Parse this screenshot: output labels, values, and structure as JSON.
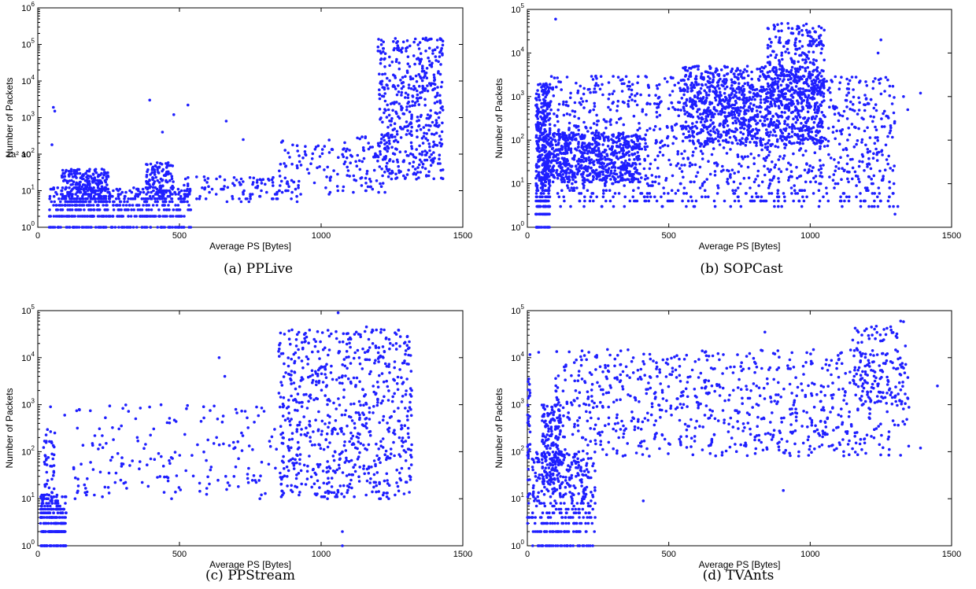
{
  "colors": {
    "marker": "#1f1fff",
    "axis": "#000000",
    "background": "#ffffff"
  },
  "chart_data": [
    {
      "type": "scatter",
      "caption": "(a) PPLive",
      "xlabel": "Average PS [Bytes]",
      "ylabel": "Number of Packets",
      "xlim": [
        0,
        1500
      ],
      "ylim": [
        1,
        1000000
      ],
      "yscale": "log",
      "x_ticks": [
        "0",
        "500",
        "1000",
        "1500"
      ],
      "y_exponents": [
        0,
        1,
        2,
        3,
        4,
        5,
        6
      ],
      "grid": false,
      "annotation": "1a² a0",
      "clusters": [
        {
          "x": [
            40,
            540
          ],
          "y": [
            1,
            12
          ],
          "n": 520
        },
        {
          "x": [
            80,
            250
          ],
          "y": [
            4,
            40
          ],
          "n": 260
        },
        {
          "x": [
            380,
            480
          ],
          "y": [
            5,
            60
          ],
          "n": 130
        },
        {
          "x": [
            500,
            950
          ],
          "y": [
            5,
            25
          ],
          "n": 110
        },
        {
          "x": [
            850,
            1250
          ],
          "y": [
            8,
            300
          ],
          "n": 160
        },
        {
          "x": [
            1200,
            1430
          ],
          "y": [
            20,
            150000
          ],
          "n": 480
        }
      ],
      "points": [
        {
          "x": 55,
          "y": 1900
        },
        {
          "x": 60,
          "y": 1500
        },
        {
          "x": 50,
          "y": 180
        },
        {
          "x": 395,
          "y": 3000
        },
        {
          "x": 440,
          "y": 400
        },
        {
          "x": 480,
          "y": 1200
        },
        {
          "x": 530,
          "y": 2200
        },
        {
          "x": 665,
          "y": 800
        },
        {
          "x": 725,
          "y": 250
        },
        {
          "x": 1255,
          "y": 120000
        },
        {
          "x": 1270,
          "y": 120000
        },
        {
          "x": 1370,
          "y": 150000
        },
        {
          "x": 1385,
          "y": 140000
        }
      ]
    },
    {
      "type": "scatter",
      "caption": "(b) SOPCast",
      "xlabel": "Average PS [Bytes]",
      "ylabel": "Number of Packets",
      "xlim": [
        0,
        1500
      ],
      "ylim": [
        1,
        100000
      ],
      "yscale": "log",
      "x_ticks": [
        "0",
        "500",
        "1000",
        "1500"
      ],
      "y_exponents": [
        0,
        1,
        2,
        3,
        4,
        5
      ],
      "grid": false,
      "clusters": [
        {
          "x": [
            30,
            80
          ],
          "y": [
            1,
            2000
          ],
          "n": 380
        },
        {
          "x": [
            60,
            400
          ],
          "y": [
            10,
            150
          ],
          "n": 600
        },
        {
          "x": [
            80,
            1300
          ],
          "y": [
            3,
            3000
          ],
          "n": 1300
        },
        {
          "x": [
            550,
            1050
          ],
          "y": [
            80,
            5000
          ],
          "n": 900
        },
        {
          "x": [
            850,
            1050
          ],
          "y": [
            1000,
            50000
          ],
          "n": 260
        }
      ],
      "points": [
        {
          "x": 100,
          "y": 60000
        },
        {
          "x": 1300,
          "y": 2
        },
        {
          "x": 1310,
          "y": 3
        },
        {
          "x": 1330,
          "y": 1000
        },
        {
          "x": 1345,
          "y": 500
        },
        {
          "x": 1390,
          "y": 1200
        },
        {
          "x": 1240,
          "y": 10000
        },
        {
          "x": 1250,
          "y": 20000
        }
      ]
    },
    {
      "type": "scatter",
      "caption": "(c) PPStream",
      "xlabel": "Average PS [Bytes]",
      "ylabel": "Number of Packets",
      "xlim": [
        0,
        1500
      ],
      "ylim": [
        1,
        100000
      ],
      "yscale": "log",
      "x_ticks": [
        "0",
        "500",
        "1000",
        "1500"
      ],
      "y_exponents": [
        0,
        1,
        2,
        3,
        4,
        5
      ],
      "grid": false,
      "clusters": [
        {
          "x": [
            10,
            100
          ],
          "y": [
            1,
            12
          ],
          "n": 300
        },
        {
          "x": [
            20,
            60
          ],
          "y": [
            10,
            300
          ],
          "n": 40
        },
        {
          "x": [
            120,
            900
          ],
          "y": [
            10,
            1000
          ],
          "n": 200
        },
        {
          "x": [
            850,
            1320
          ],
          "y": [
            10,
            40000
          ],
          "n": 720
        }
      ],
      "points": [
        {
          "x": 45,
          "y": 900
        },
        {
          "x": 60,
          "y": 250
        },
        {
          "x": 95,
          "y": 600
        },
        {
          "x": 1060,
          "y": 90000
        },
        {
          "x": 1160,
          "y": 45000
        },
        {
          "x": 1075,
          "y": 1
        },
        {
          "x": 1075,
          "y": 2
        },
        {
          "x": 640,
          "y": 10000
        },
        {
          "x": 660,
          "y": 4000
        }
      ]
    },
    {
      "type": "scatter",
      "caption": "(d) TVAnts",
      "xlabel": "Average PS [Bytes]",
      "ylabel": "Number of Packets",
      "xlim": [
        0,
        1500
      ],
      "ylim": [
        1,
        100000
      ],
      "yscale": "log",
      "x_ticks": [
        "0",
        "500",
        "1000",
        "1500"
      ],
      "y_exponents": [
        0,
        1,
        2,
        3,
        4,
        5
      ],
      "grid": false,
      "clusters": [
        {
          "x": [
            0,
            10
          ],
          "y": [
            2,
            12000
          ],
          "n": 40
        },
        {
          "x": [
            15,
            240
          ],
          "y": [
            1,
            100
          ],
          "n": 380
        },
        {
          "x": [
            50,
            120
          ],
          "y": [
            20,
            1000
          ],
          "n": 160
        },
        {
          "x": [
            100,
            1350
          ],
          "y": [
            80,
            15000
          ],
          "n": 820
        },
        {
          "x": [
            1150,
            1340
          ],
          "y": [
            1000,
            50000
          ],
          "n": 120
        }
      ],
      "points": [
        {
          "x": 1320,
          "y": 60000
        },
        {
          "x": 1330,
          "y": 58000
        },
        {
          "x": 1450,
          "y": 2500
        },
        {
          "x": 410,
          "y": 9
        },
        {
          "x": 905,
          "y": 15
        },
        {
          "x": 1390,
          "y": 120
        },
        {
          "x": 40,
          "y": 13000
        },
        {
          "x": 840,
          "y": 35000
        }
      ]
    }
  ]
}
